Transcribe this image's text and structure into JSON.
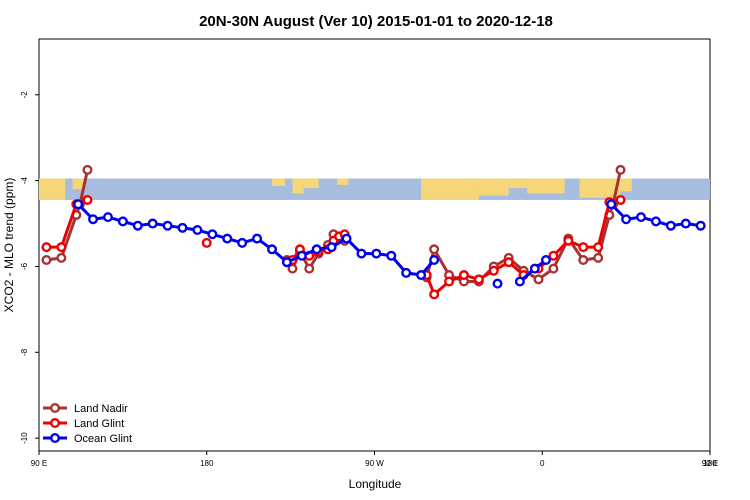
{
  "chart_data": {
    "type": "line",
    "title": "20N-30N August (Ver 10)   2015-01-01 to 2020-12-18",
    "xlabel": "Longitude",
    "ylabel": "XCO2 - MLO trend (ppm)",
    "xlim": [
      0,
      360
    ],
    "ylim": [
      -10.3,
      -0.7
    ],
    "x_ticks": [
      {
        "value": 0,
        "label": "90 E"
      },
      {
        "value": 90,
        "label": "180"
      },
      {
        "value": 180,
        "label": "90 W"
      },
      {
        "value": 270,
        "label": "0"
      },
      {
        "value": 360,
        "label": "90 E"
      },
      {
        "value": 450,
        "label": "180"
      }
    ],
    "x_ticks_note": "x positions are degrees east of 90E; axis spans 0-360 (last label 180 sits at right edge)",
    "y_ticks": [
      {
        "value": -2,
        "label": "-2"
      },
      {
        "value": -4,
        "label": "-4"
      },
      {
        "value": -6,
        "label": "-6"
      },
      {
        "value": -8,
        "label": "-8"
      },
      {
        "value": -10,
        "label": "-10"
      }
    ],
    "map_strip": {
      "y_top": -3.95,
      "y_bottom": -4.45
    },
    "series": [
      {
        "name": "Land Nadir",
        "color": "#a83232",
        "segments": [
          [
            [
              4,
              -5.85
            ],
            [
              12,
              -5.8
            ],
            [
              20,
              -4.8
            ],
            [
              22,
              -4.55
            ],
            [
              26,
              -3.75
            ]
          ],
          [
            [
              133,
              -5.85
            ],
            [
              136,
              -6.05
            ],
            [
              140,
              -5.65
            ],
            [
              145,
              -6.05
            ],
            [
              150,
              -5.7
            ],
            [
              155,
              -5.5
            ],
            [
              158,
              -5.25
            ],
            [
              161,
              -5.3
            ],
            [
              164,
              -5.4
            ]
          ],
          [
            [
              208,
              -6.25
            ],
            [
              212,
              -5.6
            ],
            [
              220,
              -6.2
            ],
            [
              228,
              -6.35
            ],
            [
              236,
              -6.35
            ],
            [
              244,
              -6.0
            ],
            [
              252,
              -5.8
            ],
            [
              260,
              -6.1
            ],
            [
              268,
              -6.3
            ],
            [
              276,
              -6.05
            ],
            [
              284,
              -5.35
            ],
            [
              292,
              -5.85
            ],
            [
              300,
              -5.8
            ],
            [
              306,
              -4.8
            ],
            [
              308,
              -4.55
            ],
            [
              312,
              -3.75
            ]
          ]
        ]
      },
      {
        "name": "Land Glint",
        "color": "#ee0000",
        "segments": [
          [
            [
              4,
              -5.55
            ],
            [
              12,
              -5.55
            ],
            [
              20,
              -4.55
            ],
            [
              26,
              -4.45
            ]
          ],
          [
            [
              90,
              -5.45
            ]
          ],
          [
            [
              136,
              -5.85
            ],
            [
              140,
              -5.6
            ],
            [
              145,
              -5.75
            ],
            [
              150,
              -5.65
            ],
            [
              155,
              -5.6
            ],
            [
              158,
              -5.4
            ],
            [
              161,
              -5.3
            ],
            [
              164,
              -5.25
            ]
          ],
          [
            [
              208,
              -6.2
            ],
            [
              212,
              -6.65
            ],
            [
              220,
              -6.35
            ],
            [
              228,
              -6.2
            ],
            [
              236,
              -6.3
            ],
            [
              244,
              -6.1
            ],
            [
              252,
              -5.9
            ],
            [
              260,
              -6.2
            ],
            [
              268,
              -6.05
            ],
            [
              276,
              -5.75
            ],
            [
              284,
              -5.4
            ],
            [
              292,
              -5.55
            ],
            [
              300,
              -5.55
            ],
            [
              306,
              -4.5
            ],
            [
              312,
              -4.45
            ]
          ]
        ]
      },
      {
        "name": "Ocean Glint",
        "color": "#0000ee",
        "segments": [
          [
            [
              21,
              -4.55
            ],
            [
              29,
              -4.9
            ],
            [
              37,
              -4.85
            ],
            [
              45,
              -4.95
            ],
            [
              53,
              -5.05
            ],
            [
              61,
              -5.0
            ],
            [
              69,
              -5.05
            ],
            [
              77,
              -5.1
            ],
            [
              85,
              -5.15
            ],
            [
              93,
              -5.25
            ],
            [
              101,
              -5.35
            ],
            [
              109,
              -5.45
            ],
            [
              117,
              -5.35
            ],
            [
              125,
              -5.6
            ],
            [
              133,
              -5.9
            ],
            [
              141,
              -5.75
            ],
            [
              149,
              -5.6
            ],
            [
              157,
              -5.55
            ],
            [
              165,
              -5.35
            ],
            [
              173,
              -5.7
            ],
            [
              181,
              -5.7
            ],
            [
              189,
              -5.75
            ],
            [
              197,
              -6.15
            ],
            [
              205,
              -6.2
            ],
            [
              212,
              -5.85
            ]
          ],
          [
            [
              246,
              -6.4
            ]
          ],
          [
            [
              258,
              -6.35
            ],
            [
              266,
              -6.05
            ],
            [
              272,
              -5.85
            ]
          ],
          [
            [
              307,
              -4.55
            ],
            [
              315,
              -4.9
            ],
            [
              323,
              -4.85
            ],
            [
              331,
              -4.95
            ],
            [
              339,
              -5.05
            ],
            [
              347,
              -5.0
            ],
            [
              355,
              -5.05
            ]
          ]
        ]
      }
    ],
    "legend": {
      "position": "bottom-left",
      "entries": [
        "Land Nadir",
        "Land Glint",
        "Ocean Glint"
      ]
    }
  }
}
